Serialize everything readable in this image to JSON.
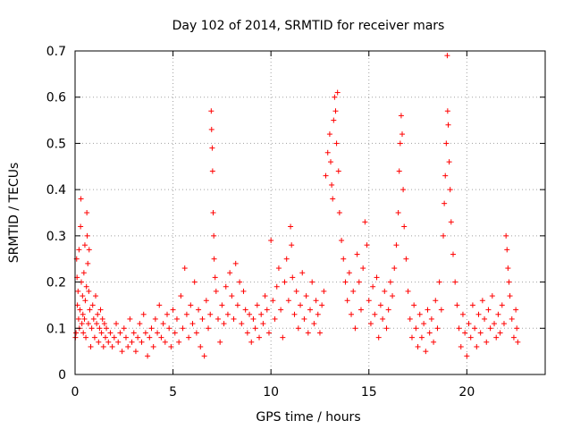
{
  "chart_data": {
    "type": "scatter",
    "title": "Day 102 of 2014, SRMTID for receiver mars",
    "xlabel": "GPS time / hours",
    "ylabel": "SRMTID / TECUs",
    "xlim": [
      0,
      24
    ],
    "ylim": [
      0,
      0.7
    ],
    "grid": true,
    "marker": "+",
    "series_color": "#ff0000",
    "x_ticks": [
      0,
      5,
      10,
      15,
      20
    ],
    "x_tick_labels": [
      "0",
      "5",
      "10",
      "15",
      "20"
    ],
    "y_ticks": [
      0,
      0.1,
      0.2,
      0.3,
      0.4,
      0.5,
      0.6,
      0.7
    ],
    "y_tick_labels": [
      "0",
      "0.1",
      "0.2",
      "0.3",
      "0.4",
      "0.5",
      "0.6",
      "0.7"
    ],
    "series": [
      {
        "name": "SRMTID",
        "points": [
          [
            0.02,
            0.08
          ],
          [
            0.05,
            0.09
          ],
          [
            0.08,
            0.25
          ],
          [
            0.1,
            0.21
          ],
          [
            0.12,
            0.15
          ],
          [
            0.15,
            0.18
          ],
          [
            0.18,
            0.12
          ],
          [
            0.2,
            0.27
          ],
          [
            0.22,
            0.1
          ],
          [
            0.25,
            0.14
          ],
          [
            0.28,
            0.32
          ],
          [
            0.3,
            0.38
          ],
          [
            0.32,
            0.2
          ],
          [
            0.35,
            0.11
          ],
          [
            0.38,
            0.17
          ],
          [
            0.4,
            0.13
          ],
          [
            0.42,
            0.09
          ],
          [
            0.45,
            0.22
          ],
          [
            0.48,
            0.12
          ],
          [
            0.5,
            0.28
          ],
          [
            0.52,
            0.16
          ],
          [
            0.55,
            0.08
          ],
          [
            0.58,
            0.19
          ],
          [
            0.6,
            0.35
          ],
          [
            0.62,
            0.3
          ],
          [
            0.65,
            0.24
          ],
          [
            0.68,
            0.11
          ],
          [
            0.7,
            0.18
          ],
          [
            0.72,
            0.27
          ],
          [
            0.75,
            0.14
          ],
          [
            0.8,
            0.06
          ],
          [
            0.85,
            0.1
          ],
          [
            0.9,
            0.15
          ],
          [
            0.95,
            0.12
          ],
          [
            1.0,
            0.08
          ],
          [
            1.05,
            0.17
          ],
          [
            1.1,
            0.11
          ],
          [
            1.15,
            0.13
          ],
          [
            1.2,
            0.07
          ],
          [
            1.25,
            0.1
          ],
          [
            1.3,
            0.14
          ],
          [
            1.35,
            0.09
          ],
          [
            1.4,
            0.12
          ],
          [
            1.45,
            0.06
          ],
          [
            1.5,
            0.11
          ],
          [
            1.55,
            0.08
          ],
          [
            1.6,
            0.1
          ],
          [
            1.7,
            0.07
          ],
          [
            1.8,
            0.09
          ],
          [
            1.9,
            0.06
          ],
          [
            2.0,
            0.08
          ],
          [
            2.1,
            0.11
          ],
          [
            2.2,
            0.07
          ],
          [
            2.3,
            0.09
          ],
          [
            2.4,
            0.05
          ],
          [
            2.5,
            0.1
          ],
          [
            2.6,
            0.08
          ],
          [
            2.7,
            0.06
          ],
          [
            2.8,
            0.12
          ],
          [
            2.9,
            0.07
          ],
          [
            3.0,
            0.09
          ],
          [
            3.1,
            0.05
          ],
          [
            3.2,
            0.08
          ],
          [
            3.3,
            0.11
          ],
          [
            3.4,
            0.07
          ],
          [
            3.5,
            0.13
          ],
          [
            3.6,
            0.09
          ],
          [
            3.7,
            0.04
          ],
          [
            3.8,
            0.08
          ],
          [
            3.9,
            0.1
          ],
          [
            4.0,
            0.06
          ],
          [
            4.1,
            0.12
          ],
          [
            4.2,
            0.09
          ],
          [
            4.3,
            0.15
          ],
          [
            4.4,
            0.08
          ],
          [
            4.5,
            0.11
          ],
          [
            4.6,
            0.07
          ],
          [
            4.7,
            0.13
          ],
          [
            4.8,
            0.1
          ],
          [
            4.9,
            0.06
          ],
          [
            5.0,
            0.14
          ],
          [
            5.1,
            0.09
          ],
          [
            5.2,
            0.12
          ],
          [
            5.3,
            0.07
          ],
          [
            5.4,
            0.17
          ],
          [
            5.5,
            0.1
          ],
          [
            5.6,
            0.23
          ],
          [
            5.7,
            0.13
          ],
          [
            5.8,
            0.08
          ],
          [
            5.9,
            0.15
          ],
          [
            6.0,
            0.11
          ],
          [
            6.1,
            0.2
          ],
          [
            6.2,
            0.09
          ],
          [
            6.3,
            0.14
          ],
          [
            6.4,
            0.06
          ],
          [
            6.5,
            0.12
          ],
          [
            6.6,
            0.04
          ],
          [
            6.7,
            0.16
          ],
          [
            6.8,
            0.1
          ],
          [
            6.9,
            0.13
          ],
          [
            6.95,
            0.57
          ],
          [
            6.97,
            0.53
          ],
          [
            7.0,
            0.49
          ],
          [
            7.02,
            0.44
          ],
          [
            7.05,
            0.35
          ],
          [
            7.08,
            0.3
          ],
          [
            7.1,
            0.25
          ],
          [
            7.15,
            0.21
          ],
          [
            7.2,
            0.18
          ],
          [
            7.3,
            0.12
          ],
          [
            7.4,
            0.07
          ],
          [
            7.5,
            0.15
          ],
          [
            7.6,
            0.11
          ],
          [
            7.7,
            0.19
          ],
          [
            7.8,
            0.13
          ],
          [
            7.9,
            0.22
          ],
          [
            8.0,
            0.17
          ],
          [
            8.1,
            0.12
          ],
          [
            8.2,
            0.24
          ],
          [
            8.3,
            0.15
          ],
          [
            8.4,
            0.2
          ],
          [
            8.5,
            0.11
          ],
          [
            8.6,
            0.18
          ],
          [
            8.7,
            0.14
          ],
          [
            8.8,
            0.09
          ],
          [
            8.9,
            0.13
          ],
          [
            9.0,
            0.07
          ],
          [
            9.1,
            0.12
          ],
          [
            9.2,
            0.1
          ],
          [
            9.3,
            0.15
          ],
          [
            9.4,
            0.08
          ],
          [
            9.5,
            0.13
          ],
          [
            9.6,
            0.11
          ],
          [
            9.7,
            0.17
          ],
          [
            9.8,
            0.14
          ],
          [
            9.9,
            0.09
          ],
          [
            10.0,
            0.29
          ],
          [
            10.1,
            0.16
          ],
          [
            10.2,
            0.12
          ],
          [
            10.3,
            0.19
          ],
          [
            10.4,
            0.23
          ],
          [
            10.5,
            0.14
          ],
          [
            10.6,
            0.08
          ],
          [
            10.7,
            0.2
          ],
          [
            10.8,
            0.25
          ],
          [
            10.9,
            0.16
          ],
          [
            11.0,
            0.32
          ],
          [
            11.05,
            0.28
          ],
          [
            11.1,
            0.21
          ],
          [
            11.2,
            0.13
          ],
          [
            11.3,
            0.18
          ],
          [
            11.4,
            0.1
          ],
          [
            11.5,
            0.15
          ],
          [
            11.6,
            0.22
          ],
          [
            11.7,
            0.12
          ],
          [
            11.8,
            0.17
          ],
          [
            11.9,
            0.09
          ],
          [
            12.0,
            0.14
          ],
          [
            12.1,
            0.2
          ],
          [
            12.2,
            0.11
          ],
          [
            12.3,
            0.16
          ],
          [
            12.4,
            0.13
          ],
          [
            12.5,
            0.09
          ],
          [
            12.6,
            0.15
          ],
          [
            12.7,
            0.18
          ],
          [
            12.8,
            0.43
          ],
          [
            12.9,
            0.48
          ],
          [
            13.0,
            0.52
          ],
          [
            13.05,
            0.46
          ],
          [
            13.1,
            0.41
          ],
          [
            13.15,
            0.38
          ],
          [
            13.2,
            0.55
          ],
          [
            13.25,
            0.6
          ],
          [
            13.3,
            0.57
          ],
          [
            13.35,
            0.5
          ],
          [
            13.4,
            0.61
          ],
          [
            13.45,
            0.44
          ],
          [
            13.5,
            0.35
          ],
          [
            13.6,
            0.29
          ],
          [
            13.7,
            0.25
          ],
          [
            13.8,
            0.2
          ],
          [
            13.9,
            0.16
          ],
          [
            14.0,
            0.22
          ],
          [
            14.1,
            0.13
          ],
          [
            14.2,
            0.18
          ],
          [
            14.3,
            0.1
          ],
          [
            14.4,
            0.26
          ],
          [
            14.5,
            0.2
          ],
          [
            14.6,
            0.14
          ],
          [
            14.7,
            0.23
          ],
          [
            14.8,
            0.33
          ],
          [
            14.9,
            0.28
          ],
          [
            15.0,
            0.16
          ],
          [
            15.1,
            0.11
          ],
          [
            15.2,
            0.19
          ],
          [
            15.3,
            0.13
          ],
          [
            15.4,
            0.21
          ],
          [
            15.5,
            0.08
          ],
          [
            15.6,
            0.15
          ],
          [
            15.7,
            0.12
          ],
          [
            15.8,
            0.18
          ],
          [
            15.9,
            0.1
          ],
          [
            16.0,
            0.14
          ],
          [
            16.1,
            0.2
          ],
          [
            16.2,
            0.17
          ],
          [
            16.3,
            0.23
          ],
          [
            16.4,
            0.28
          ],
          [
            16.5,
            0.35
          ],
          [
            16.55,
            0.44
          ],
          [
            16.6,
            0.5
          ],
          [
            16.65,
            0.56
          ],
          [
            16.7,
            0.52
          ],
          [
            16.75,
            0.4
          ],
          [
            16.8,
            0.32
          ],
          [
            16.9,
            0.25
          ],
          [
            17.0,
            0.18
          ],
          [
            17.1,
            0.12
          ],
          [
            17.2,
            0.08
          ],
          [
            17.3,
            0.15
          ],
          [
            17.4,
            0.1
          ],
          [
            17.5,
            0.06
          ],
          [
            17.6,
            0.13
          ],
          [
            17.7,
            0.08
          ],
          [
            17.8,
            0.11
          ],
          [
            17.9,
            0.05
          ],
          [
            18.0,
            0.14
          ],
          [
            18.1,
            0.09
          ],
          [
            18.2,
            0.12
          ],
          [
            18.3,
            0.07
          ],
          [
            18.4,
            0.16
          ],
          [
            18.5,
            0.1
          ],
          [
            18.6,
            0.2
          ],
          [
            18.7,
            0.14
          ],
          [
            18.8,
            0.3
          ],
          [
            18.85,
            0.37
          ],
          [
            18.9,
            0.43
          ],
          [
            18.95,
            0.5
          ],
          [
            19.0,
            0.69
          ],
          [
            19.02,
            0.57
          ],
          [
            19.05,
            0.54
          ],
          [
            19.1,
            0.46
          ],
          [
            19.15,
            0.4
          ],
          [
            19.2,
            0.33
          ],
          [
            19.3,
            0.26
          ],
          [
            19.4,
            0.2
          ],
          [
            19.5,
            0.15
          ],
          [
            19.6,
            0.1
          ],
          [
            19.7,
            0.06
          ],
          [
            19.8,
            0.13
          ],
          [
            19.9,
            0.09
          ],
          [
            20.0,
            0.04
          ],
          [
            20.1,
            0.11
          ],
          [
            20.2,
            0.08
          ],
          [
            20.3,
            0.15
          ],
          [
            20.4,
            0.1
          ],
          [
            20.5,
            0.06
          ],
          [
            20.6,
            0.13
          ],
          [
            20.7,
            0.09
          ],
          [
            20.8,
            0.16
          ],
          [
            20.9,
            0.12
          ],
          [
            21.0,
            0.07
          ],
          [
            21.1,
            0.14
          ],
          [
            21.2,
            0.1
          ],
          [
            21.3,
            0.17
          ],
          [
            21.4,
            0.11
          ],
          [
            21.5,
            0.08
          ],
          [
            21.6,
            0.13
          ],
          [
            21.7,
            0.09
          ],
          [
            21.8,
            0.15
          ],
          [
            21.9,
            0.11
          ],
          [
            22.0,
            0.3
          ],
          [
            22.05,
            0.27
          ],
          [
            22.1,
            0.23
          ],
          [
            22.15,
            0.2
          ],
          [
            22.2,
            0.17
          ],
          [
            22.3,
            0.12
          ],
          [
            22.4,
            0.08
          ],
          [
            22.5,
            0.14
          ],
          [
            22.55,
            0.1
          ],
          [
            22.6,
            0.07
          ]
        ]
      }
    ]
  }
}
